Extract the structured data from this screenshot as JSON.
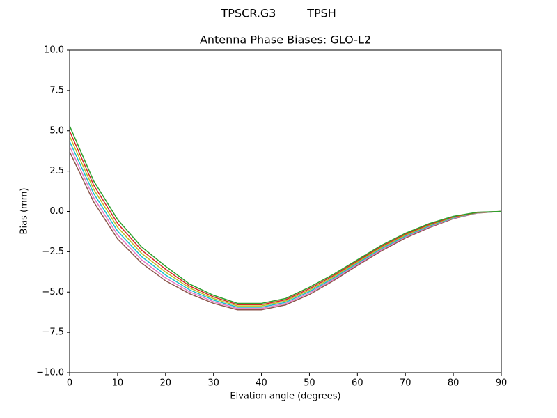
{
  "chart_data": {
    "type": "line",
    "antenna_title": "TPSCR.G3",
    "radome_title": "TPSH",
    "title": "Antenna Phase Biases: GLO-L2",
    "xlabel": "Elvation angle (degrees)",
    "ylabel": "Bias (mm)",
    "x": [
      0,
      5,
      10,
      15,
      20,
      25,
      30,
      35,
      40,
      45,
      50,
      55,
      60,
      65,
      70,
      75,
      80,
      85,
      90
    ],
    "xlim": [
      0,
      90
    ],
    "xticks": [
      0,
      10,
      20,
      30,
      40,
      50,
      60,
      70,
      80,
      90
    ],
    "ylim": [
      -10,
      10
    ],
    "yticks": [
      {
        "value": -10,
        "label": "−10.0"
      },
      {
        "value": -7.5,
        "label": "−7.5"
      },
      {
        "value": -5,
        "label": "−5.0"
      },
      {
        "value": -2.5,
        "label": "−2.5"
      },
      {
        "value": 0,
        "label": "0.0"
      },
      {
        "value": 2.5,
        "label": "2.5"
      },
      {
        "value": 5,
        "label": "5.0"
      },
      {
        "value": 7.5,
        "label": "7.5"
      },
      {
        "value": 10,
        "label": "10.0"
      }
    ],
    "grid": false,
    "series": [
      {
        "color": "#8c564b",
        "values": [
          3.7,
          0.6,
          -1.7,
          -3.2,
          -4.3,
          -5.1,
          -5.7,
          -6.1,
          -6.1,
          -5.8,
          -5.15,
          -4.3,
          -3.35,
          -2.45,
          -1.65,
          -1.0,
          -0.45,
          -0.1,
          0
        ]
      },
      {
        "color": "#e377c2",
        "values": [
          4.02,
          0.86,
          -1.46,
          -3.0,
          -4.12,
          -4.98,
          -5.6,
          -6.02,
          -6.02,
          -5.72,
          -5.06,
          -4.22,
          -3.28,
          -2.38,
          -1.59,
          -0.95,
          -0.42,
          -0.09,
          0
        ]
      },
      {
        "color": "#17becf",
        "values": [
          4.34,
          1.12,
          -1.22,
          -2.8,
          -3.94,
          -4.86,
          -5.5,
          -5.94,
          -5.94,
          -5.64,
          -4.97,
          -4.14,
          -3.21,
          -2.31,
          -1.53,
          -0.9,
          -0.39,
          -0.08,
          0
        ]
      },
      {
        "color": "#bcbd22",
        "values": [
          4.66,
          1.38,
          -0.98,
          -2.6,
          -3.76,
          -4.74,
          -5.4,
          -5.86,
          -5.86,
          -5.56,
          -4.88,
          -4.06,
          -3.14,
          -2.24,
          -1.47,
          -0.85,
          -0.36,
          -0.07,
          0
        ]
      },
      {
        "color": "#d62728",
        "values": [
          4.98,
          1.64,
          -0.74,
          -2.4,
          -3.58,
          -4.62,
          -5.3,
          -5.78,
          -5.78,
          -5.48,
          -4.79,
          -3.98,
          -3.07,
          -2.17,
          -1.41,
          -0.8,
          -0.33,
          -0.06,
          0
        ]
      },
      {
        "color": "#2ca02c",
        "values": [
          5.3,
          1.9,
          -0.5,
          -2.2,
          -3.4,
          -4.5,
          -5.2,
          -5.7,
          -5.7,
          -5.4,
          -4.7,
          -3.9,
          -3.0,
          -2.1,
          -1.35,
          -0.75,
          -0.3,
          -0.05,
          0
        ]
      }
    ]
  }
}
